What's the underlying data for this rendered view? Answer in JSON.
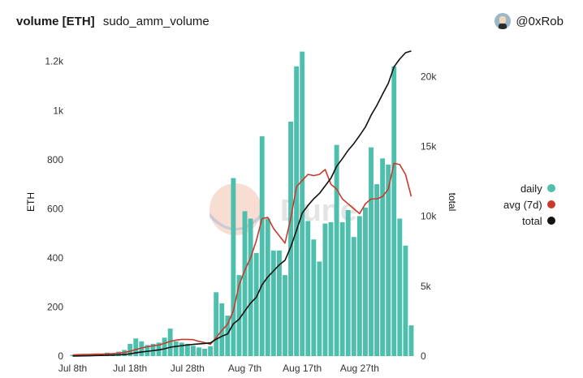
{
  "header": {
    "title": "volume [ETH]",
    "subtitle": "sudo_amm_volume",
    "user": "@0xRob"
  },
  "watermark": "Dune",
  "chart_data": {
    "type": "bar",
    "x_ticks": [
      "Jul 8th",
      "Jul 18th",
      "Jul 28th",
      "Aug 7th",
      "Aug 17th",
      "Aug 27th"
    ],
    "y_left": {
      "label": "ETH",
      "ticks": [
        "0",
        "200",
        "400",
        "600",
        "800",
        "1k",
        "1.2k"
      ],
      "max": 1200
    },
    "y_right": {
      "label": "total",
      "ticks": [
        "0",
        "5k",
        "10k",
        "15k",
        "20k"
      ],
      "max": 20000
    },
    "grid": false,
    "legend_position": "right",
    "series": [
      {
        "name": "daily",
        "type": "bar",
        "axis": "left",
        "color": "#4dbfac",
        "values": [
          5,
          6,
          8,
          7,
          10,
          9,
          14,
          12,
          18,
          25,
          50,
          72,
          60,
          45,
          50,
          55,
          75,
          112,
          60,
          55,
          50,
          42,
          35,
          30,
          40,
          260,
          215,
          165,
          725,
          330,
          590,
          560,
          420,
          895,
          560,
          430,
          430,
          330,
          955,
          1180,
          1240,
          550,
          475,
          385,
          540,
          545,
          860,
          545,
          595,
          485,
          570,
          605,
          850,
          700,
          805,
          780,
          1180,
          560,
          450,
          125
        ]
      },
      {
        "name": "avg (7d)",
        "type": "line",
        "axis": "left",
        "color": "#c93a2e",
        "values": [
          5,
          6,
          7,
          7,
          8,
          8,
          9,
          10,
          12,
          15,
          20,
          27,
          33,
          38,
          42,
          45,
          52,
          60,
          65,
          68,
          68,
          67,
          60,
          55,
          48,
          75,
          105,
          130,
          185,
          290,
          350,
          400,
          470,
          560,
          565,
          520,
          490,
          460,
          560,
          690,
          715,
          740,
          735,
          740,
          760,
          700,
          680,
          640,
          620,
          600,
          580,
          620,
          640,
          640,
          650,
          680,
          785,
          780,
          740,
          650
        ]
      },
      {
        "name": "total",
        "type": "line",
        "axis": "right",
        "color": "#111111",
        "values": [
          5,
          11,
          19,
          26,
          36,
          45,
          59,
          71,
          89,
          114,
          164,
          236,
          296,
          341,
          391,
          446,
          521,
          633,
          693,
          748,
          798,
          840,
          875,
          905,
          945,
          1205,
          1420,
          1585,
          2310,
          2640,
          3230,
          3790,
          4210,
          5105,
          5665,
          6095,
          6525,
          6855,
          7810,
          8990,
          10230,
          10780,
          11255,
          11640,
          12180,
          12725,
          13585,
          14130,
          14725,
          15210,
          15780,
          16385,
          17235,
          17935,
          18740,
          19520,
          20700,
          21260,
          21710,
          21835
        ]
      }
    ]
  }
}
